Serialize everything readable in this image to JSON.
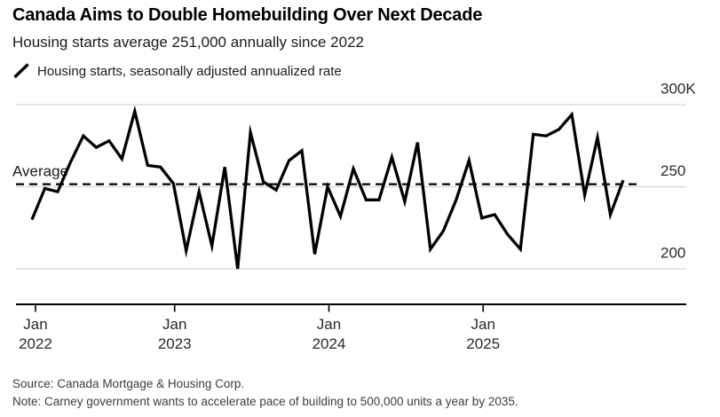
{
  "header": {
    "title": "Canada Aims to Double Homebuilding Over Next Decade",
    "subtitle": "Housing starts average 251,000 annually since 2022"
  },
  "legend": {
    "label": "Housing starts, seasonally adjusted annualized rate"
  },
  "chart_data": {
    "type": "line",
    "title": "Canada Aims to Double Homebuilding Over Next Decade",
    "subtitle": "Housing starts average 251,000 annually since 2022",
    "series": [
      {
        "name": "Housing starts, seasonally adjusted annualized rate",
        "unit": "thousands of units, SAAR",
        "months": [
          "2022-01",
          "2022-02",
          "2022-03",
          "2022-04",
          "2022-05",
          "2022-06",
          "2022-07",
          "2022-08",
          "2022-09",
          "2022-10",
          "2022-11",
          "2022-12",
          "2023-01",
          "2023-02",
          "2023-03",
          "2023-04",
          "2023-05",
          "2023-06",
          "2023-07",
          "2023-08",
          "2023-09",
          "2023-10",
          "2023-11",
          "2023-12",
          "2024-01",
          "2024-02",
          "2024-03",
          "2024-04",
          "2024-05",
          "2024-06",
          "2024-07",
          "2024-08",
          "2024-09",
          "2024-10",
          "2024-11",
          "2024-12",
          "2025-01",
          "2025-02",
          "2025-03",
          "2025-04",
          "2025-05",
          "2025-06",
          "2025-07",
          "2025-08",
          "2025-09",
          "2025-10",
          "2025-11"
        ],
        "values": [
          230,
          249,
          247,
          265,
          281,
          274,
          278,
          267,
          296,
          263,
          262,
          252,
          211,
          247,
          214,
          262,
          200,
          283,
          253,
          248,
          266,
          272,
          209,
          250,
          232,
          261,
          242,
          242,
          268,
          241,
          277,
          212,
          223,
          242,
          266,
          231,
          233,
          221,
          212,
          282,
          281,
          285,
          294,
          245,
          280,
          233,
          254
        ]
      }
    ],
    "average_line": {
      "label": "Average",
      "value": 251
    },
    "y_axis": {
      "tick_labels": [
        "300K",
        "250",
        "200"
      ],
      "tick_values": [
        300,
        250,
        200
      ],
      "ylim": [
        180,
        305
      ],
      "unit": "thousands"
    },
    "x_axis": {
      "ticks": [
        {
          "month_index": 0,
          "line1": "Jan",
          "line2": "2022"
        },
        {
          "month_index": 12,
          "line1": "Jan",
          "line2": "2023"
        },
        {
          "month_index": 24,
          "line1": "Jan",
          "line2": "2024"
        },
        {
          "month_index": 36,
          "line1": "Jan",
          "line2": "2025"
        }
      ]
    },
    "grid": "horizontal",
    "legend_position": "top-left",
    "colors": {
      "line": "#000000",
      "average_line": "#000000",
      "grid": "#d8d8d8",
      "axis": "#000000",
      "label_text": "#2b2b2b"
    }
  },
  "footer": {
    "source": "Source: Canada Mortgage & Housing Corp.",
    "note": "Note: Carney government wants to accelerate pace of building to 500,000 units a year by 2035."
  }
}
